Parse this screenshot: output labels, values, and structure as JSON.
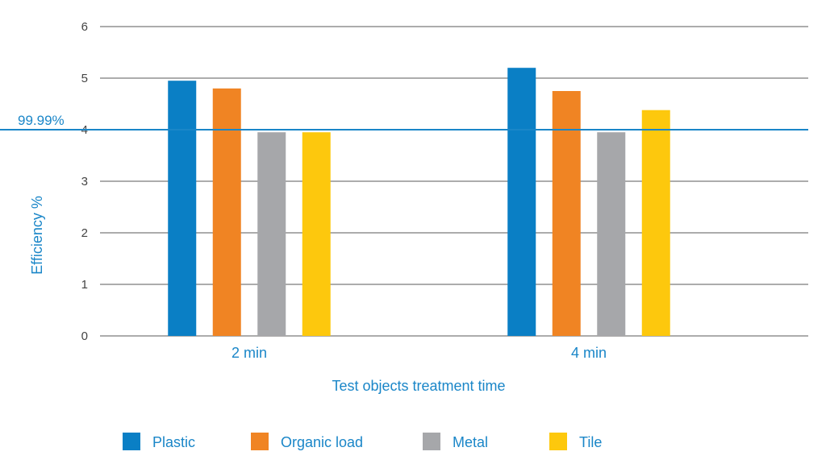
{
  "chart_data": {
    "type": "bar",
    "categories": [
      "2 min",
      "4 min"
    ],
    "series": [
      {
        "name": "Plastic",
        "values": [
          4.95,
          5.2
        ],
        "color": "#0a7fc5"
      },
      {
        "name": "Organic load",
        "values": [
          4.8,
          4.75
        ],
        "color": "#f08423"
      },
      {
        "name": "Metal",
        "values": [
          3.95,
          3.95
        ],
        "color": "#a6a7aa"
      },
      {
        "name": "Tile",
        "values": [
          3.95,
          4.38
        ],
        "color": "#fdc80d"
      }
    ],
    "xlabel": "Test objects treatment time",
    "ylabel": "Efficiency %",
    "ylim": [
      0,
      6
    ],
    "yticks": [
      "0",
      "1",
      "2",
      "3",
      "4",
      "5",
      "6"
    ],
    "reference_line": {
      "value": 4,
      "label": "99.99%",
      "color": "#1a86c8"
    },
    "grid": true,
    "legend_position": "bottom"
  }
}
